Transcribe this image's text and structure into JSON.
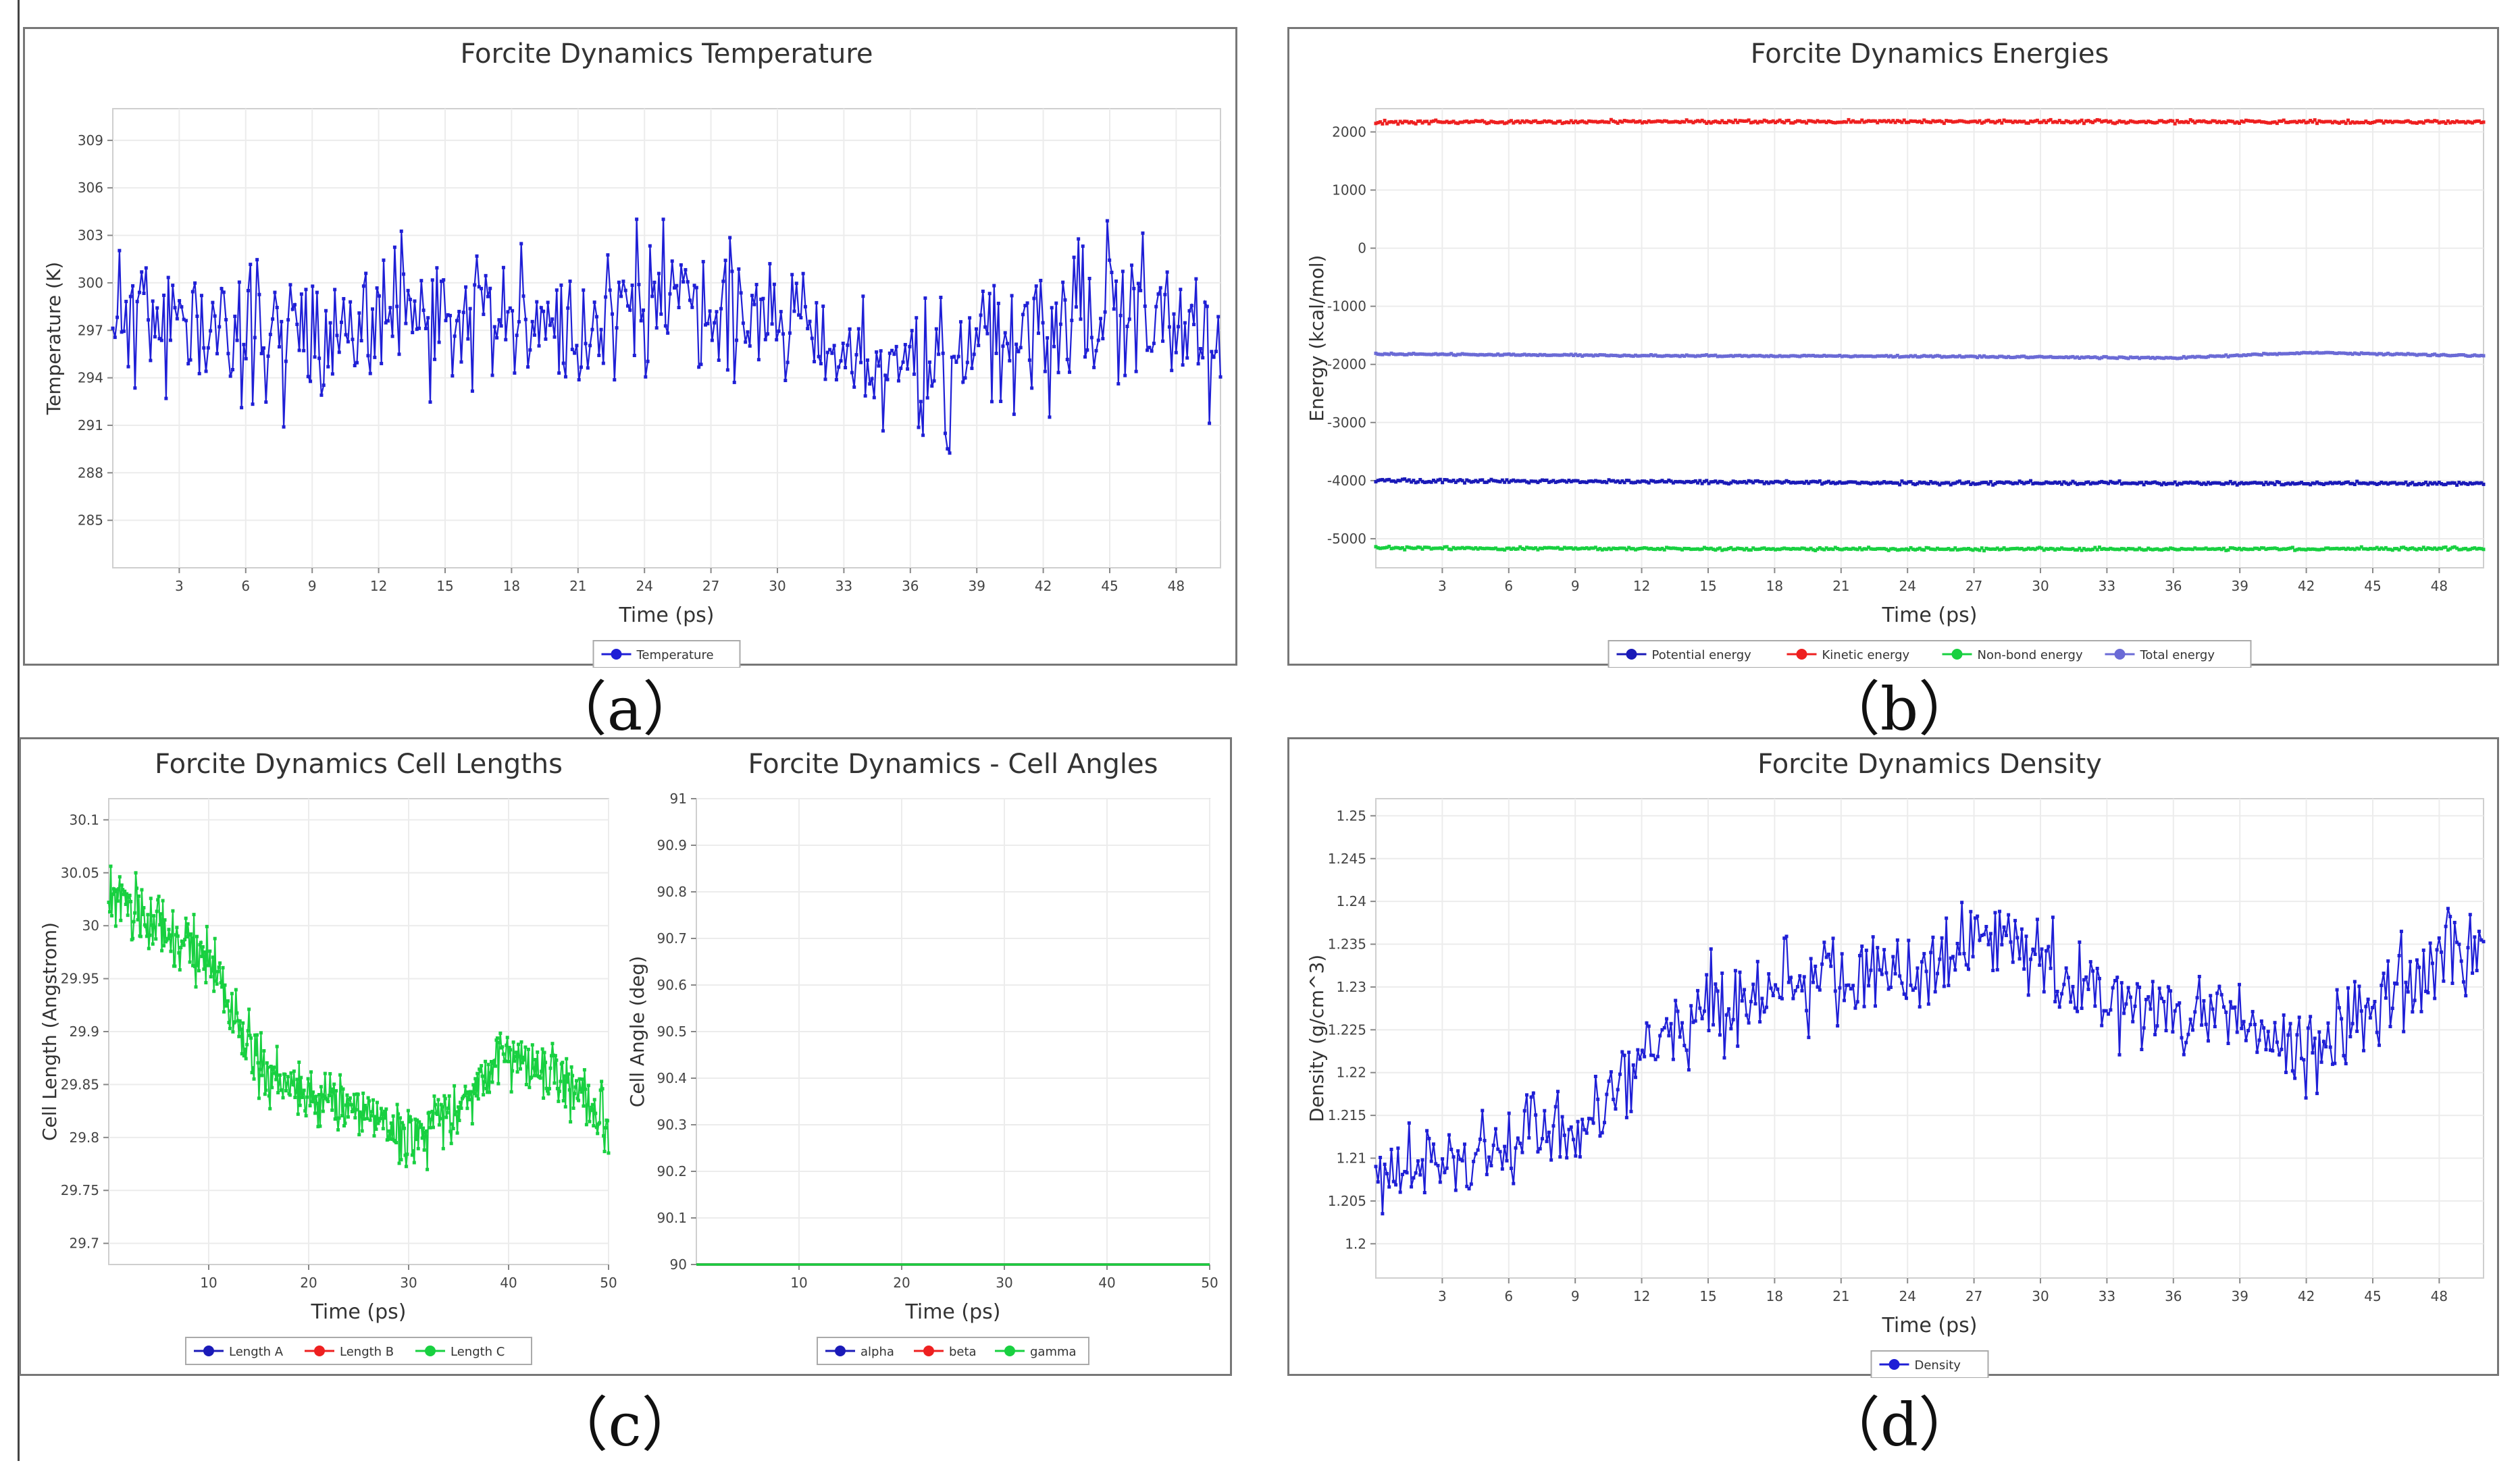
{
  "captions": {
    "a": "（a）",
    "b": "（b）",
    "c": "（c）",
    "d": "（d）"
  },
  "chart_data": [
    {
      "id": "temperature",
      "type": "line",
      "title": "Forcite Dynamics Temperature",
      "xlabel": "Time (ps)",
      "ylabel": "Temperature (K)",
      "xlim": [
        0,
        50
      ],
      "ylim": [
        282,
        311
      ],
      "xticks": [
        "3",
        "6",
        "9",
        "12",
        "15",
        "18",
        "21",
        "24",
        "27",
        "30",
        "33",
        "36",
        "39",
        "42",
        "45",
        "48"
      ],
      "yticks": [
        "285",
        "288",
        "291",
        "294",
        "297",
        "300",
        "303",
        "306",
        "309"
      ],
      "legend": "bottom-center",
      "series": [
        {
          "name": "Temperature",
          "color": "#1f1fd6",
          "mean": 297,
          "amp": 4.2,
          "npoints": 500,
          "seed": 11,
          "x": [
            0,
            5,
            10,
            15,
            20,
            25,
            30,
            35,
            40,
            45,
            50
          ],
          "values": [
            298,
            297,
            297,
            298,
            297,
            299,
            298,
            294,
            296,
            299,
            295
          ]
        }
      ]
    },
    {
      "id": "energies",
      "type": "line",
      "title": "Forcite Dynamics Energies",
      "xlabel": "Time (ps)",
      "ylabel": "Energy (kcal/mol)",
      "xlim": [
        0,
        50
      ],
      "ylim": [
        -5500,
        2400
      ],
      "xticks": [
        "3",
        "6",
        "9",
        "12",
        "15",
        "18",
        "21",
        "24",
        "27",
        "30",
        "33",
        "36",
        "39",
        "42",
        "45",
        "48"
      ],
      "yticks": [
        "-5000",
        "-4000",
        "-3000",
        "-2000",
        "-1000",
        "0",
        "1000",
        "2000"
      ],
      "legend": "bottom-center",
      "series": [
        {
          "name": "Potential energy",
          "color": "#1a1ab8",
          "mean": -4030,
          "amp": 25,
          "npoints": 500,
          "seed": 21,
          "x": [
            0,
            25,
            50
          ],
          "values": [
            -4000,
            -4040,
            -4050
          ]
        },
        {
          "name": "Kinetic energy",
          "color": "#ee2020",
          "mean": 2170,
          "amp": 25,
          "npoints": 500,
          "seed": 22,
          "x": [
            0,
            25,
            50
          ],
          "values": [
            2170,
            2180,
            2170
          ]
        },
        {
          "name": "Non-bond energy",
          "color": "#18d040",
          "mean": -5170,
          "amp": 22,
          "npoints": 500,
          "seed": 23,
          "x": [
            0,
            25,
            50
          ],
          "values": [
            -5160,
            -5180,
            -5170
          ]
        },
        {
          "name": "Total energy",
          "color": "#6b6bd6",
          "mean": -1850,
          "amp": 12,
          "npoints": 500,
          "seed": 24,
          "x": [
            0,
            12,
            24,
            36,
            42,
            50
          ],
          "values": [
            -1820,
            -1850,
            -1860,
            -1890,
            -1800,
            -1850
          ]
        }
      ]
    },
    {
      "id": "cell_lengths",
      "type": "line",
      "title": "Forcite Dynamics Cell Lengths",
      "xlabel": "Time (ps)",
      "ylabel": "Cell Length (Angstrom)",
      "xlim": [
        0,
        50
      ],
      "ylim": [
        29.68,
        30.12
      ],
      "xticks": [
        "10",
        "20",
        "30",
        "40",
        "50"
      ],
      "yticks": [
        "29.7",
        "29.75",
        "29.8",
        "29.85",
        "29.9",
        "29.95",
        "30",
        "30.05",
        "30.1"
      ],
      "legend": "bottom-center",
      "series": [
        {
          "name": "Length A",
          "color": "#1a1ab8",
          "legend_only": true
        },
        {
          "name": "Length B",
          "color": "#ee2020",
          "legend_only": true
        },
        {
          "name": "Length C",
          "color": "#18d040",
          "amp": 0.028,
          "npoints": 500,
          "seed": 31,
          "x": [
            0,
            5,
            10,
            15,
            20,
            25,
            30,
            35,
            40,
            45,
            50
          ],
          "values": [
            30.03,
            30.0,
            29.97,
            29.86,
            29.84,
            29.83,
            29.8,
            29.83,
            29.88,
            29.86,
            29.81
          ]
        }
      ]
    },
    {
      "id": "cell_angles",
      "type": "line",
      "title": "Forcite Dynamics - Cell Angles",
      "xlabel": "Time (ps)",
      "ylabel": "Cell Angle (deg)",
      "xlim": [
        0,
        50
      ],
      "ylim": [
        90,
        91
      ],
      "xticks": [
        "10",
        "20",
        "30",
        "40",
        "50"
      ],
      "yticks": [
        "90",
        "90.1",
        "90.2",
        "90.3",
        "90.4",
        "90.5",
        "90.6",
        "90.7",
        "90.8",
        "90.9",
        "91"
      ],
      "legend": "bottom-center",
      "series": [
        {
          "name": "alpha",
          "color": "#1a1ab8",
          "x": [
            0,
            50
          ],
          "values": [
            90,
            90
          ]
        },
        {
          "name": "beta",
          "color": "#ee2020",
          "x": [
            0,
            50
          ],
          "values": [
            90,
            90
          ]
        },
        {
          "name": "gamma",
          "color": "#18d040",
          "x": [
            0,
            50
          ],
          "values": [
            90,
            90
          ]
        }
      ]
    },
    {
      "id": "density",
      "type": "line",
      "title": "Forcite Dynamics Density",
      "xlabel": "Time (ps)",
      "ylabel": "Density (g/cm^3)",
      "xlim": [
        0,
        50
      ],
      "ylim": [
        1.196,
        1.252
      ],
      "xticks": [
        "3",
        "6",
        "9",
        "12",
        "15",
        "18",
        "21",
        "24",
        "27",
        "30",
        "33",
        "36",
        "39",
        "42",
        "45",
        "48"
      ],
      "yticks": [
        "1.2",
        "1.205",
        "1.21",
        "1.215",
        "1.22",
        "1.225",
        "1.23",
        "1.235",
        "1.24",
        "1.245",
        "1.25"
      ],
      "legend": "bottom-center",
      "series": [
        {
          "name": "Density",
          "color": "#1f1fd6",
          "amp": 0.0048,
          "npoints": 500,
          "seed": 41,
          "x": [
            0,
            5,
            10,
            15,
            20,
            25,
            28,
            33,
            38,
            42,
            45,
            50
          ],
          "values": [
            1.208,
            1.21,
            1.215,
            1.228,
            1.231,
            1.232,
            1.236,
            1.228,
            1.227,
            1.222,
            1.228,
            1.236
          ]
        }
      ]
    }
  ]
}
